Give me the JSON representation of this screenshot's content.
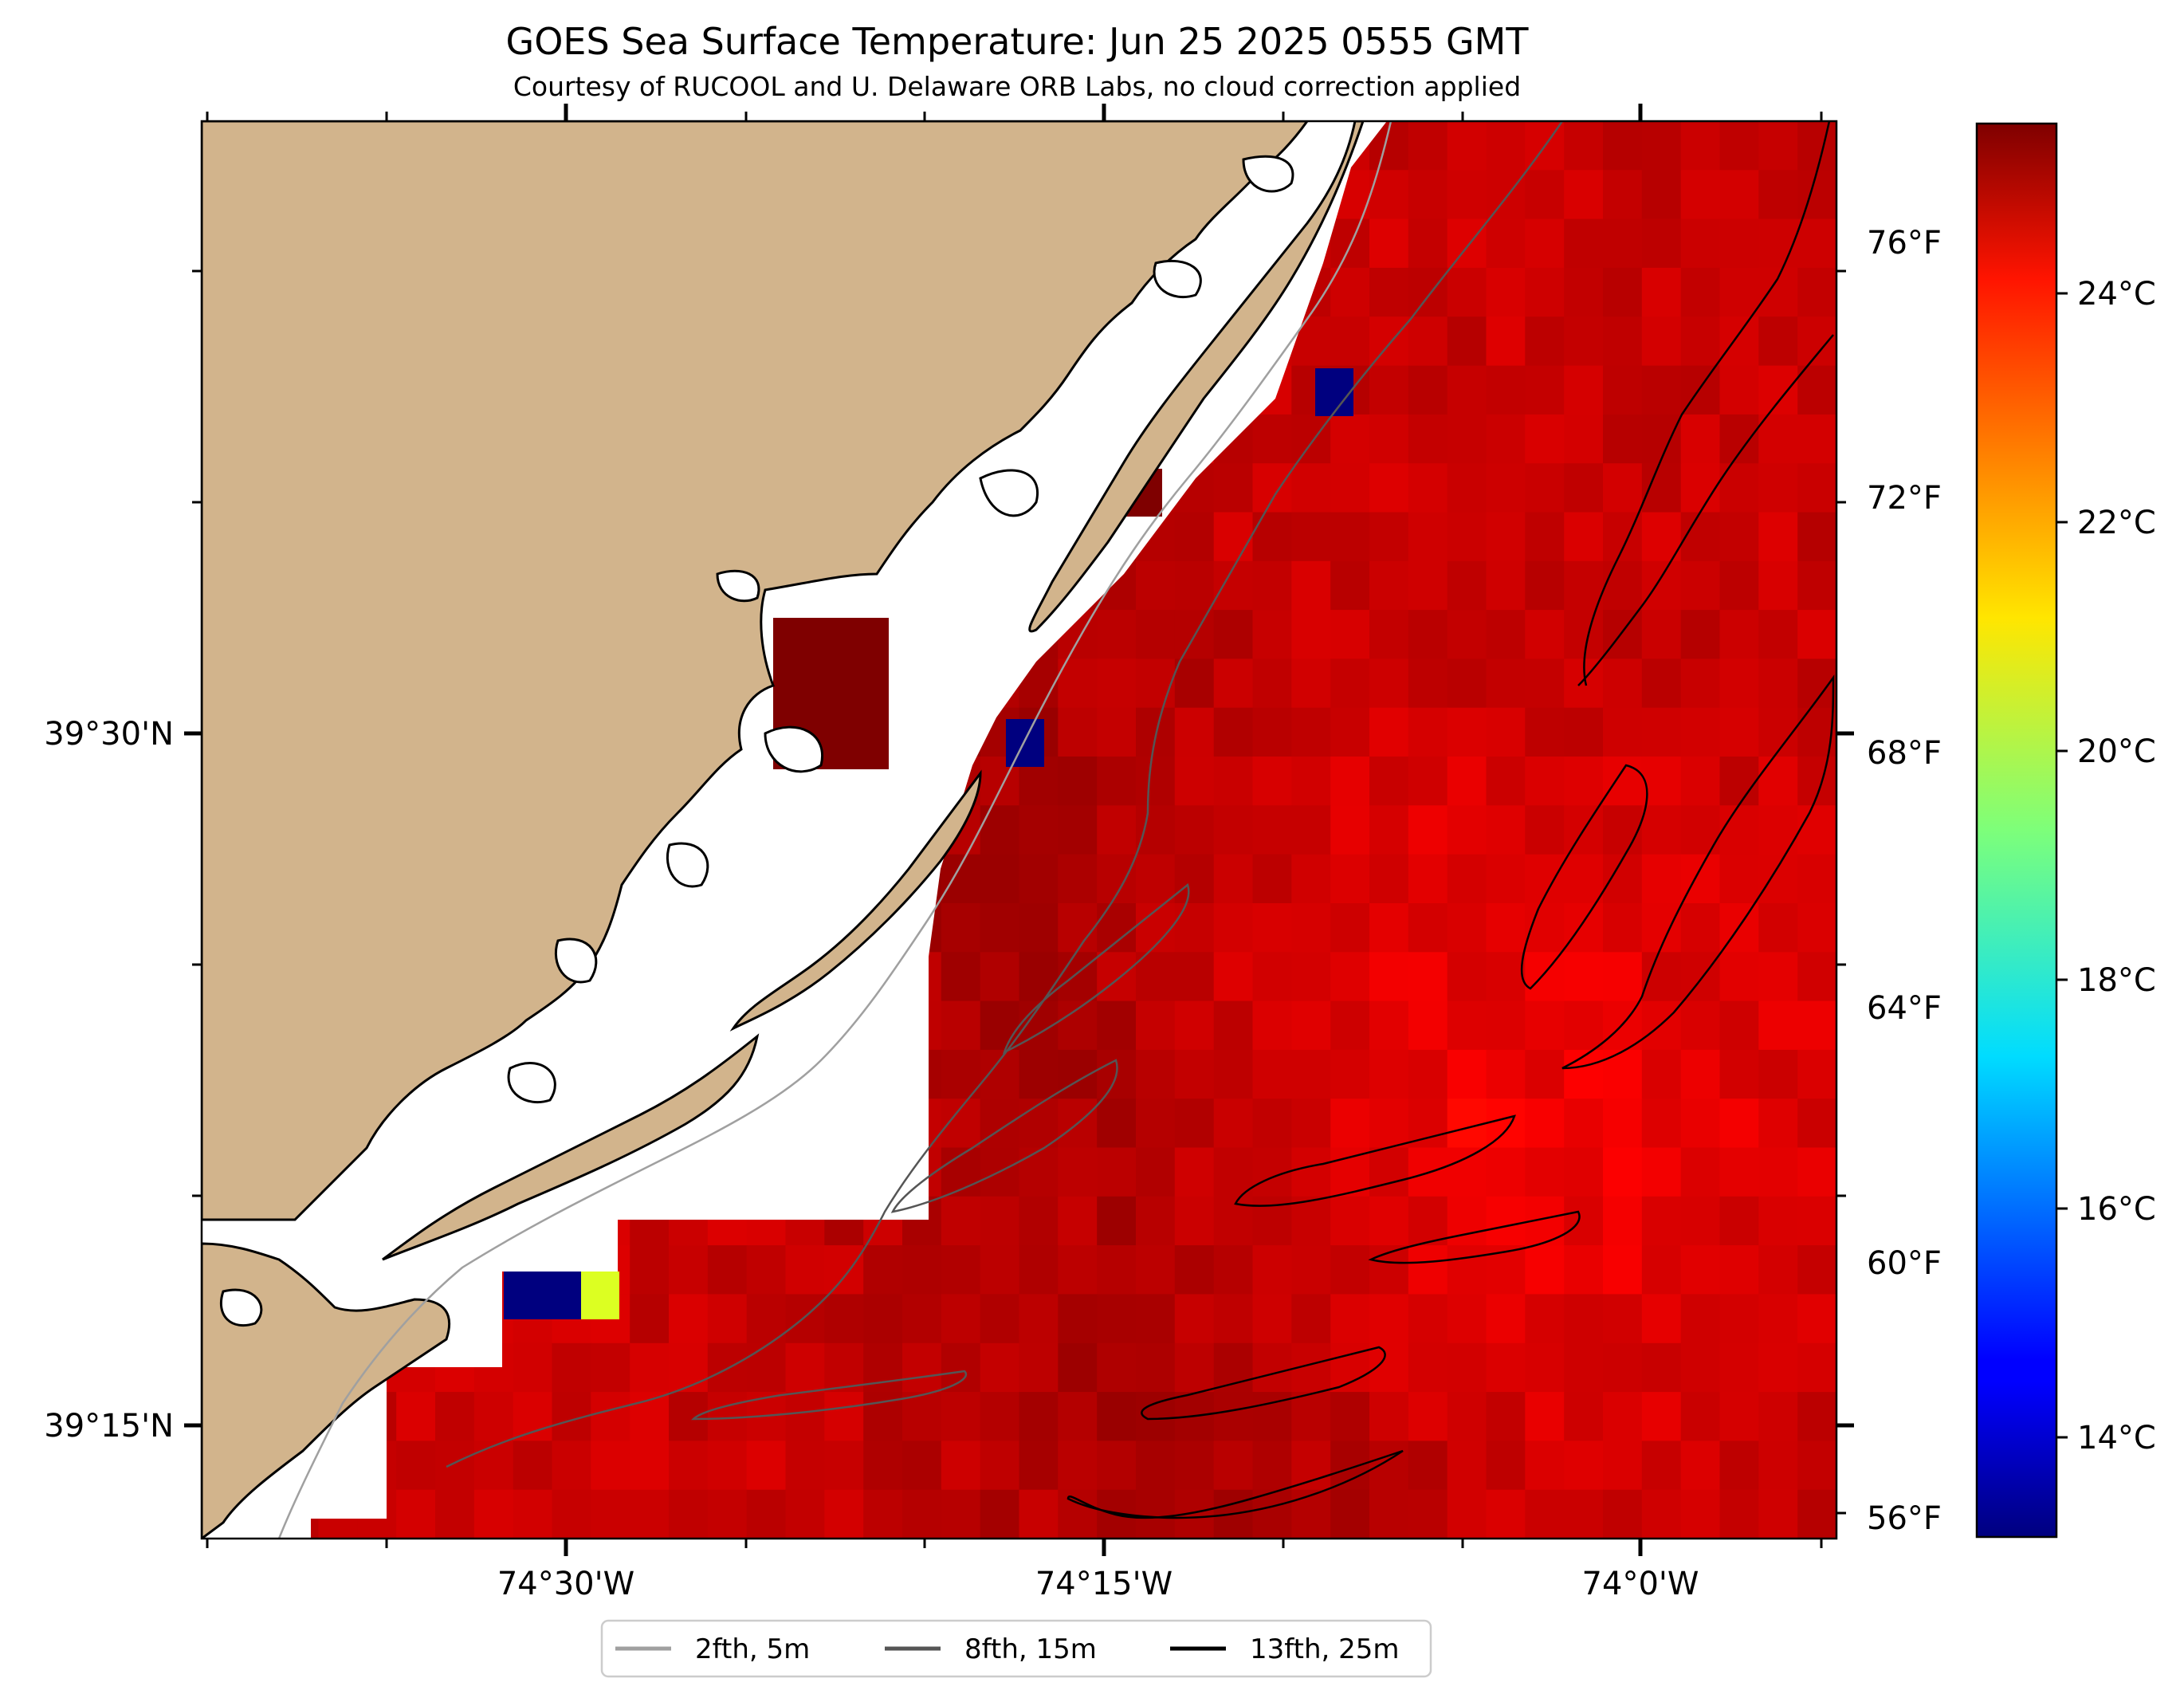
{
  "title": "GOES Sea Surface Temperature: Jun 25 2025 0555 GMT",
  "subtitle": "Courtesy of RUCOOL and U. Delaware ORB Labs, no cloud correction applied",
  "colors": {
    "land": "#d2b48c",
    "no_data": "#ffffff",
    "contour_2fth": "#a0a0a0",
    "contour_8fth": "#555555",
    "contour_13fth": "#000000"
  },
  "colormap": "jet",
  "chart_data": {
    "type": "heatmap",
    "x_ticks": [
      "74°30'W",
      "74°15'W",
      "74°0'W"
    ],
    "y_ticks": [
      "39°30'N",
      "39°15'N"
    ],
    "colorbar": {
      "celsius_ticks": [
        "24°C",
        "22°C",
        "20°C",
        "18°C",
        "16°C",
        "14°C"
      ],
      "fahrenheit_ticks": [
        "76°F",
        "72°F",
        "68°F",
        "64°F",
        "60°F",
        "56°F"
      ],
      "range_c": [
        12.8,
        25.2
      ]
    },
    "sst_summary_c": {
      "offshore_typical": 24.3,
      "nearshore_warm_max": 25.2,
      "southeast_band": 23.6,
      "outliers": [
        13.0,
        13.0,
        20.8
      ]
    }
  },
  "legend": [
    {
      "label": "2fth, 5m",
      "color": "#a0a0a0"
    },
    {
      "label": "8fth, 15m",
      "color": "#555555"
    },
    {
      "label": "13fth, 25m",
      "color": "#000000"
    }
  ]
}
